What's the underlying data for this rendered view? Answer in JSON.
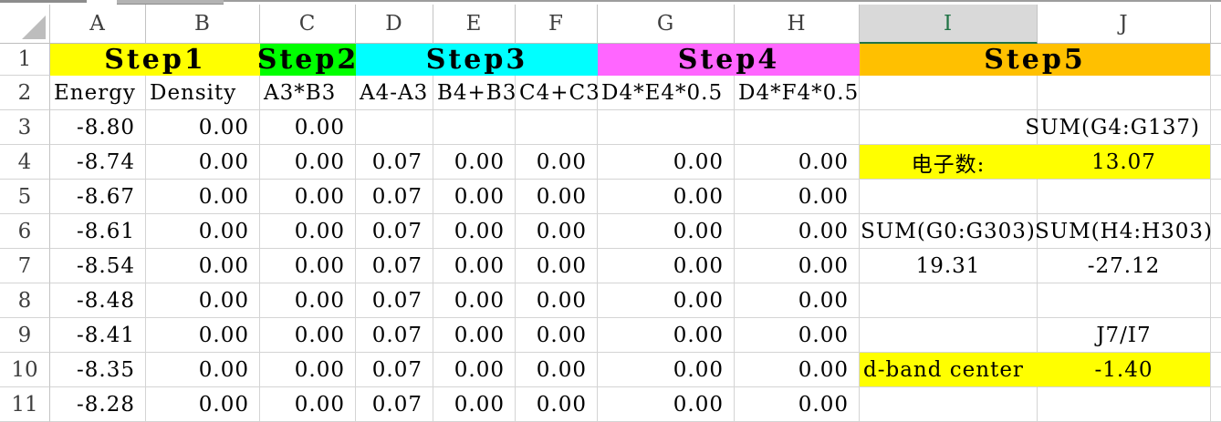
{
  "colors": {
    "step1_yellow": "#FFFF00",
    "step2_green": "#00FF00",
    "step3_cyan": "#00FFFF",
    "step4_magenta": "#FF66FF",
    "step5_gold": "#FFC000",
    "highlight": "#FFFF00",
    "selected_header_green": "#217346"
  },
  "spreadsheet": {
    "column_headers": [
      "A",
      "B",
      "C",
      "D",
      "E",
      "F",
      "G",
      "H",
      "I",
      "J"
    ],
    "selected_column": "I",
    "row_headers": [
      "1",
      "2",
      "3",
      "4",
      "5",
      "6",
      "7",
      "8",
      "9",
      "10",
      "11"
    ],
    "step_bands": [
      {
        "label": "Step1",
        "color": "#FFFF00",
        "cols": "A:B"
      },
      {
        "label": "Step2",
        "color": "#00FF00",
        "cols": "C"
      },
      {
        "label": "Step3",
        "color": "#00FFFF",
        "cols": "D:F"
      },
      {
        "label": "Step4",
        "color": "#FF66FF",
        "cols": "G:H"
      },
      {
        "label": "Step5",
        "color": "#FFC000",
        "cols": "I:J"
      }
    ],
    "formula_row": {
      "A": "Energy",
      "B": "Density",
      "C": "A3*B3",
      "D": "A4-A3",
      "E": "B4+B3",
      "F": "C4+C3",
      "G": "D4*E4*0.5",
      "H": "D4*F4*0.5"
    },
    "data_rows": [
      {
        "row": "3",
        "cells": [
          {
            "c": "A",
            "t": "-8.80"
          },
          {
            "c": "B",
            "t": "0.00"
          },
          {
            "c": "C",
            "t": "0.00"
          },
          {
            "c": "J",
            "t": "SUM(G4:G137)",
            "a": "r"
          }
        ]
      },
      {
        "row": "4",
        "cells": [
          {
            "c": "A",
            "t": "-8.74"
          },
          {
            "c": "B",
            "t": "0.00"
          },
          {
            "c": "C",
            "t": "0.00"
          },
          {
            "c": "D",
            "t": "0.07"
          },
          {
            "c": "E",
            "t": "0.00"
          },
          {
            "c": "F",
            "t": "0.00"
          },
          {
            "c": "G",
            "t": "0.00"
          },
          {
            "c": "H",
            "t": "0.00"
          },
          {
            "c": "I",
            "t": "电子数:",
            "a": "c",
            "hl": true
          },
          {
            "c": "J",
            "t": "13.07",
            "a": "c",
            "hl": true
          }
        ]
      },
      {
        "row": "5",
        "cells": [
          {
            "c": "A",
            "t": "-8.67"
          },
          {
            "c": "B",
            "t": "0.00"
          },
          {
            "c": "C",
            "t": "0.00"
          },
          {
            "c": "D",
            "t": "0.07"
          },
          {
            "c": "E",
            "t": "0.00"
          },
          {
            "c": "F",
            "t": "0.00"
          },
          {
            "c": "G",
            "t": "0.00"
          },
          {
            "c": "H",
            "t": "0.00"
          }
        ]
      },
      {
        "row": "6",
        "cells": [
          {
            "c": "A",
            "t": "-8.61"
          },
          {
            "c": "B",
            "t": "0.00"
          },
          {
            "c": "C",
            "t": "0.00"
          },
          {
            "c": "D",
            "t": "0.07"
          },
          {
            "c": "E",
            "t": "0.00"
          },
          {
            "c": "F",
            "t": "0.00"
          },
          {
            "c": "G",
            "t": "0.00"
          },
          {
            "c": "H",
            "t": "0.00"
          },
          {
            "c": "I",
            "t": "SUM(G0:G303)",
            "a": "c"
          },
          {
            "c": "J",
            "t": "SUM(H4:H303)",
            "a": "c"
          }
        ]
      },
      {
        "row": "7",
        "cells": [
          {
            "c": "A",
            "t": "-8.54"
          },
          {
            "c": "B",
            "t": "0.00"
          },
          {
            "c": "C",
            "t": "0.00"
          },
          {
            "c": "D",
            "t": "0.07"
          },
          {
            "c": "E",
            "t": "0.00"
          },
          {
            "c": "F",
            "t": "0.00"
          },
          {
            "c": "G",
            "t": "0.00"
          },
          {
            "c": "H",
            "t": "0.00"
          },
          {
            "c": "I",
            "t": "19.31",
            "a": "c"
          },
          {
            "c": "J",
            "t": "-27.12",
            "a": "c"
          }
        ]
      },
      {
        "row": "8",
        "cells": [
          {
            "c": "A",
            "t": "-8.48"
          },
          {
            "c": "B",
            "t": "0.00"
          },
          {
            "c": "C",
            "t": "0.00"
          },
          {
            "c": "D",
            "t": "0.07"
          },
          {
            "c": "E",
            "t": "0.00"
          },
          {
            "c": "F",
            "t": "0.00"
          },
          {
            "c": "G",
            "t": "0.00"
          },
          {
            "c": "H",
            "t": "0.00"
          }
        ]
      },
      {
        "row": "9",
        "cells": [
          {
            "c": "A",
            "t": "-8.41"
          },
          {
            "c": "B",
            "t": "0.00"
          },
          {
            "c": "C",
            "t": "0.00"
          },
          {
            "c": "D",
            "t": "0.07"
          },
          {
            "c": "E",
            "t": "0.00"
          },
          {
            "c": "F",
            "t": "0.00"
          },
          {
            "c": "G",
            "t": "0.00"
          },
          {
            "c": "H",
            "t": "0.00"
          },
          {
            "c": "J",
            "t": "J7/I7",
            "a": "c"
          }
        ]
      },
      {
        "row": "10",
        "cells": [
          {
            "c": "A",
            "t": "-8.35"
          },
          {
            "c": "B",
            "t": "0.00"
          },
          {
            "c": "C",
            "t": "0.00"
          },
          {
            "c": "D",
            "t": "0.07"
          },
          {
            "c": "E",
            "t": "0.00"
          },
          {
            "c": "F",
            "t": "0.00"
          },
          {
            "c": "G",
            "t": "0.00"
          },
          {
            "c": "H",
            "t": "0.00"
          },
          {
            "c": "I",
            "t": "d-band center",
            "a": "l",
            "hl": true
          },
          {
            "c": "J",
            "t": "-1.40",
            "a": "c",
            "hl": true
          }
        ]
      },
      {
        "row": "11",
        "cells": [
          {
            "c": "A",
            "t": "-8.28"
          },
          {
            "c": "B",
            "t": "0.00"
          },
          {
            "c": "C",
            "t": "0.00"
          },
          {
            "c": "D",
            "t": "0.07"
          },
          {
            "c": "E",
            "t": "0.00"
          },
          {
            "c": "F",
            "t": "0.00"
          },
          {
            "c": "G",
            "t": "0.00"
          },
          {
            "c": "H",
            "t": "0.00"
          }
        ]
      }
    ]
  }
}
